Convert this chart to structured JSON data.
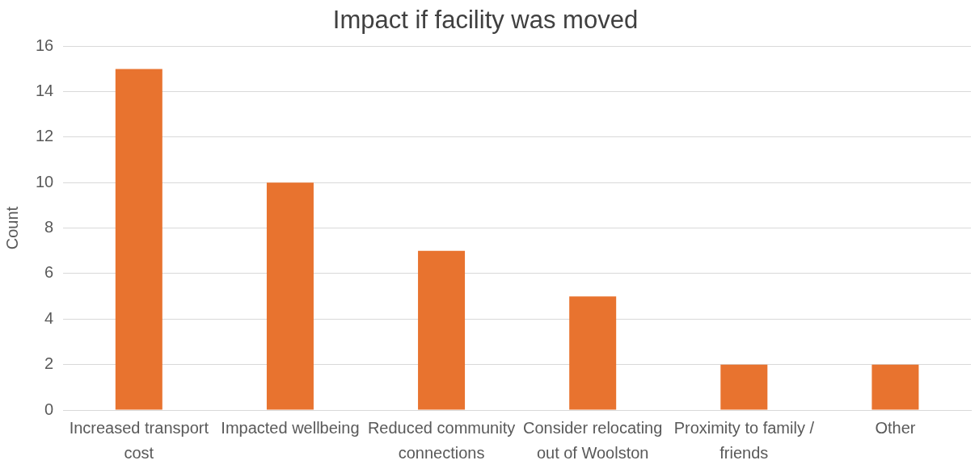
{
  "chart_data": {
    "type": "bar",
    "title": "Impact if facility was moved",
    "ylabel": "Count",
    "categories": [
      "Increased transport cost",
      "Impacted wellbeing",
      "Reduced community connections",
      "Consider relocating out of Woolston",
      "Proximity to family / friends",
      "Other"
    ],
    "values": [
      15,
      10,
      7,
      5,
      2,
      2
    ],
    "color": "#e8732f",
    "ylim": [
      0,
      16
    ],
    "yticks": [
      0,
      2,
      4,
      6,
      8,
      10,
      12,
      14,
      16
    ],
    "grid": "y",
    "legend": false
  }
}
